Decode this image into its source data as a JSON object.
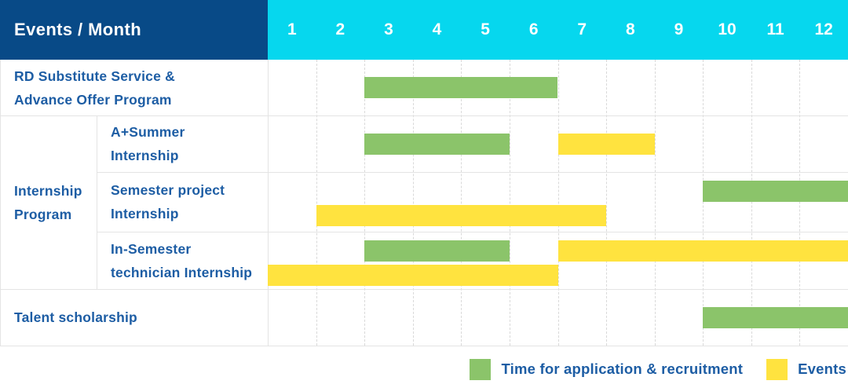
{
  "header": {
    "title": "Events / Month"
  },
  "months": [
    "1",
    "2",
    "3",
    "4",
    "5",
    "6",
    "7",
    "8",
    "9",
    "10",
    "11",
    "12"
  ],
  "legend": [
    {
      "key": "application",
      "label": "Time for application & recruitment",
      "color": "#8bc46a"
    },
    {
      "key": "event",
      "label": "Events",
      "color": "#ffe33f"
    }
  ],
  "colors": {
    "header_bg": "#084a87",
    "months_bg": "#06d7ee",
    "header_text": "#ffffff",
    "label_text": "#1d5da4",
    "grid_solid": "#e4e4e4",
    "grid_dashed": "#d9d9d9",
    "application": "#8bc46a",
    "event": "#ffe33f",
    "background": "#ffffff"
  },
  "chart_data": {
    "type": "bar",
    "variant": "gantt",
    "title": "Events / Month",
    "x_axis": {
      "unit": "month",
      "ticks": [
        1,
        2,
        3,
        4,
        5,
        6,
        7,
        8,
        9,
        10,
        11,
        12
      ],
      "range": [
        1,
        12
      ]
    },
    "grid": "on",
    "legend_position": "bottom-right",
    "series": [
      {
        "key": "application",
        "name": "Time for application & recruitment",
        "color": "#8bc46a"
      },
      {
        "key": "event",
        "name": "Events",
        "color": "#ffe33f"
      }
    ],
    "rows": [
      {
        "group": "",
        "label": "RD Substitute Service & Advance Offer Program",
        "label_lines": [
          "RD Substitute Service &",
          "Advance Offer Program"
        ],
        "bars": [
          {
            "series": "application",
            "start_month": 3,
            "end_month": 6,
            "lane": "single"
          }
        ]
      },
      {
        "group": "Internship Program",
        "label": "A+Summer Internship",
        "label_lines": [
          "A+Summer",
          "Internship"
        ],
        "bars": [
          {
            "series": "application",
            "start_month": 3,
            "end_month": 5,
            "lane": "single"
          },
          {
            "series": "event",
            "start_month": 7,
            "end_month": 8,
            "lane": "single"
          }
        ]
      },
      {
        "group": "Internship Program",
        "label": "Semester project Internship",
        "label_lines": [
          "Semester project",
          "Internship"
        ],
        "bars": [
          {
            "series": "application",
            "start_month": 10,
            "end_month": 12,
            "lane": "top"
          },
          {
            "series": "event",
            "start_month": 2,
            "end_month": 7,
            "lane": "bottom"
          }
        ]
      },
      {
        "group": "Internship Program",
        "label": "In-Semester technician Internship",
        "label_lines": [
          "In-Semester",
          "technician Internship"
        ],
        "bars": [
          {
            "series": "application",
            "start_month": 3,
            "end_month": 5,
            "lane": "top"
          },
          {
            "series": "event",
            "start_month": 7,
            "end_month": 12,
            "lane": "top"
          },
          {
            "series": "event",
            "start_month": 1,
            "end_month": 6,
            "lane": "bottom"
          }
        ]
      },
      {
        "group": "",
        "label": "Talent scholarship",
        "label_lines": [
          "Talent scholarship"
        ],
        "bars": [
          {
            "series": "application",
            "start_month": 10,
            "end_month": 12,
            "lane": "single"
          }
        ]
      }
    ],
    "group_label": "Internship Program",
    "group_label_lines": [
      "Internship",
      "Program"
    ],
    "group_row_span": [
      1,
      3
    ]
  }
}
